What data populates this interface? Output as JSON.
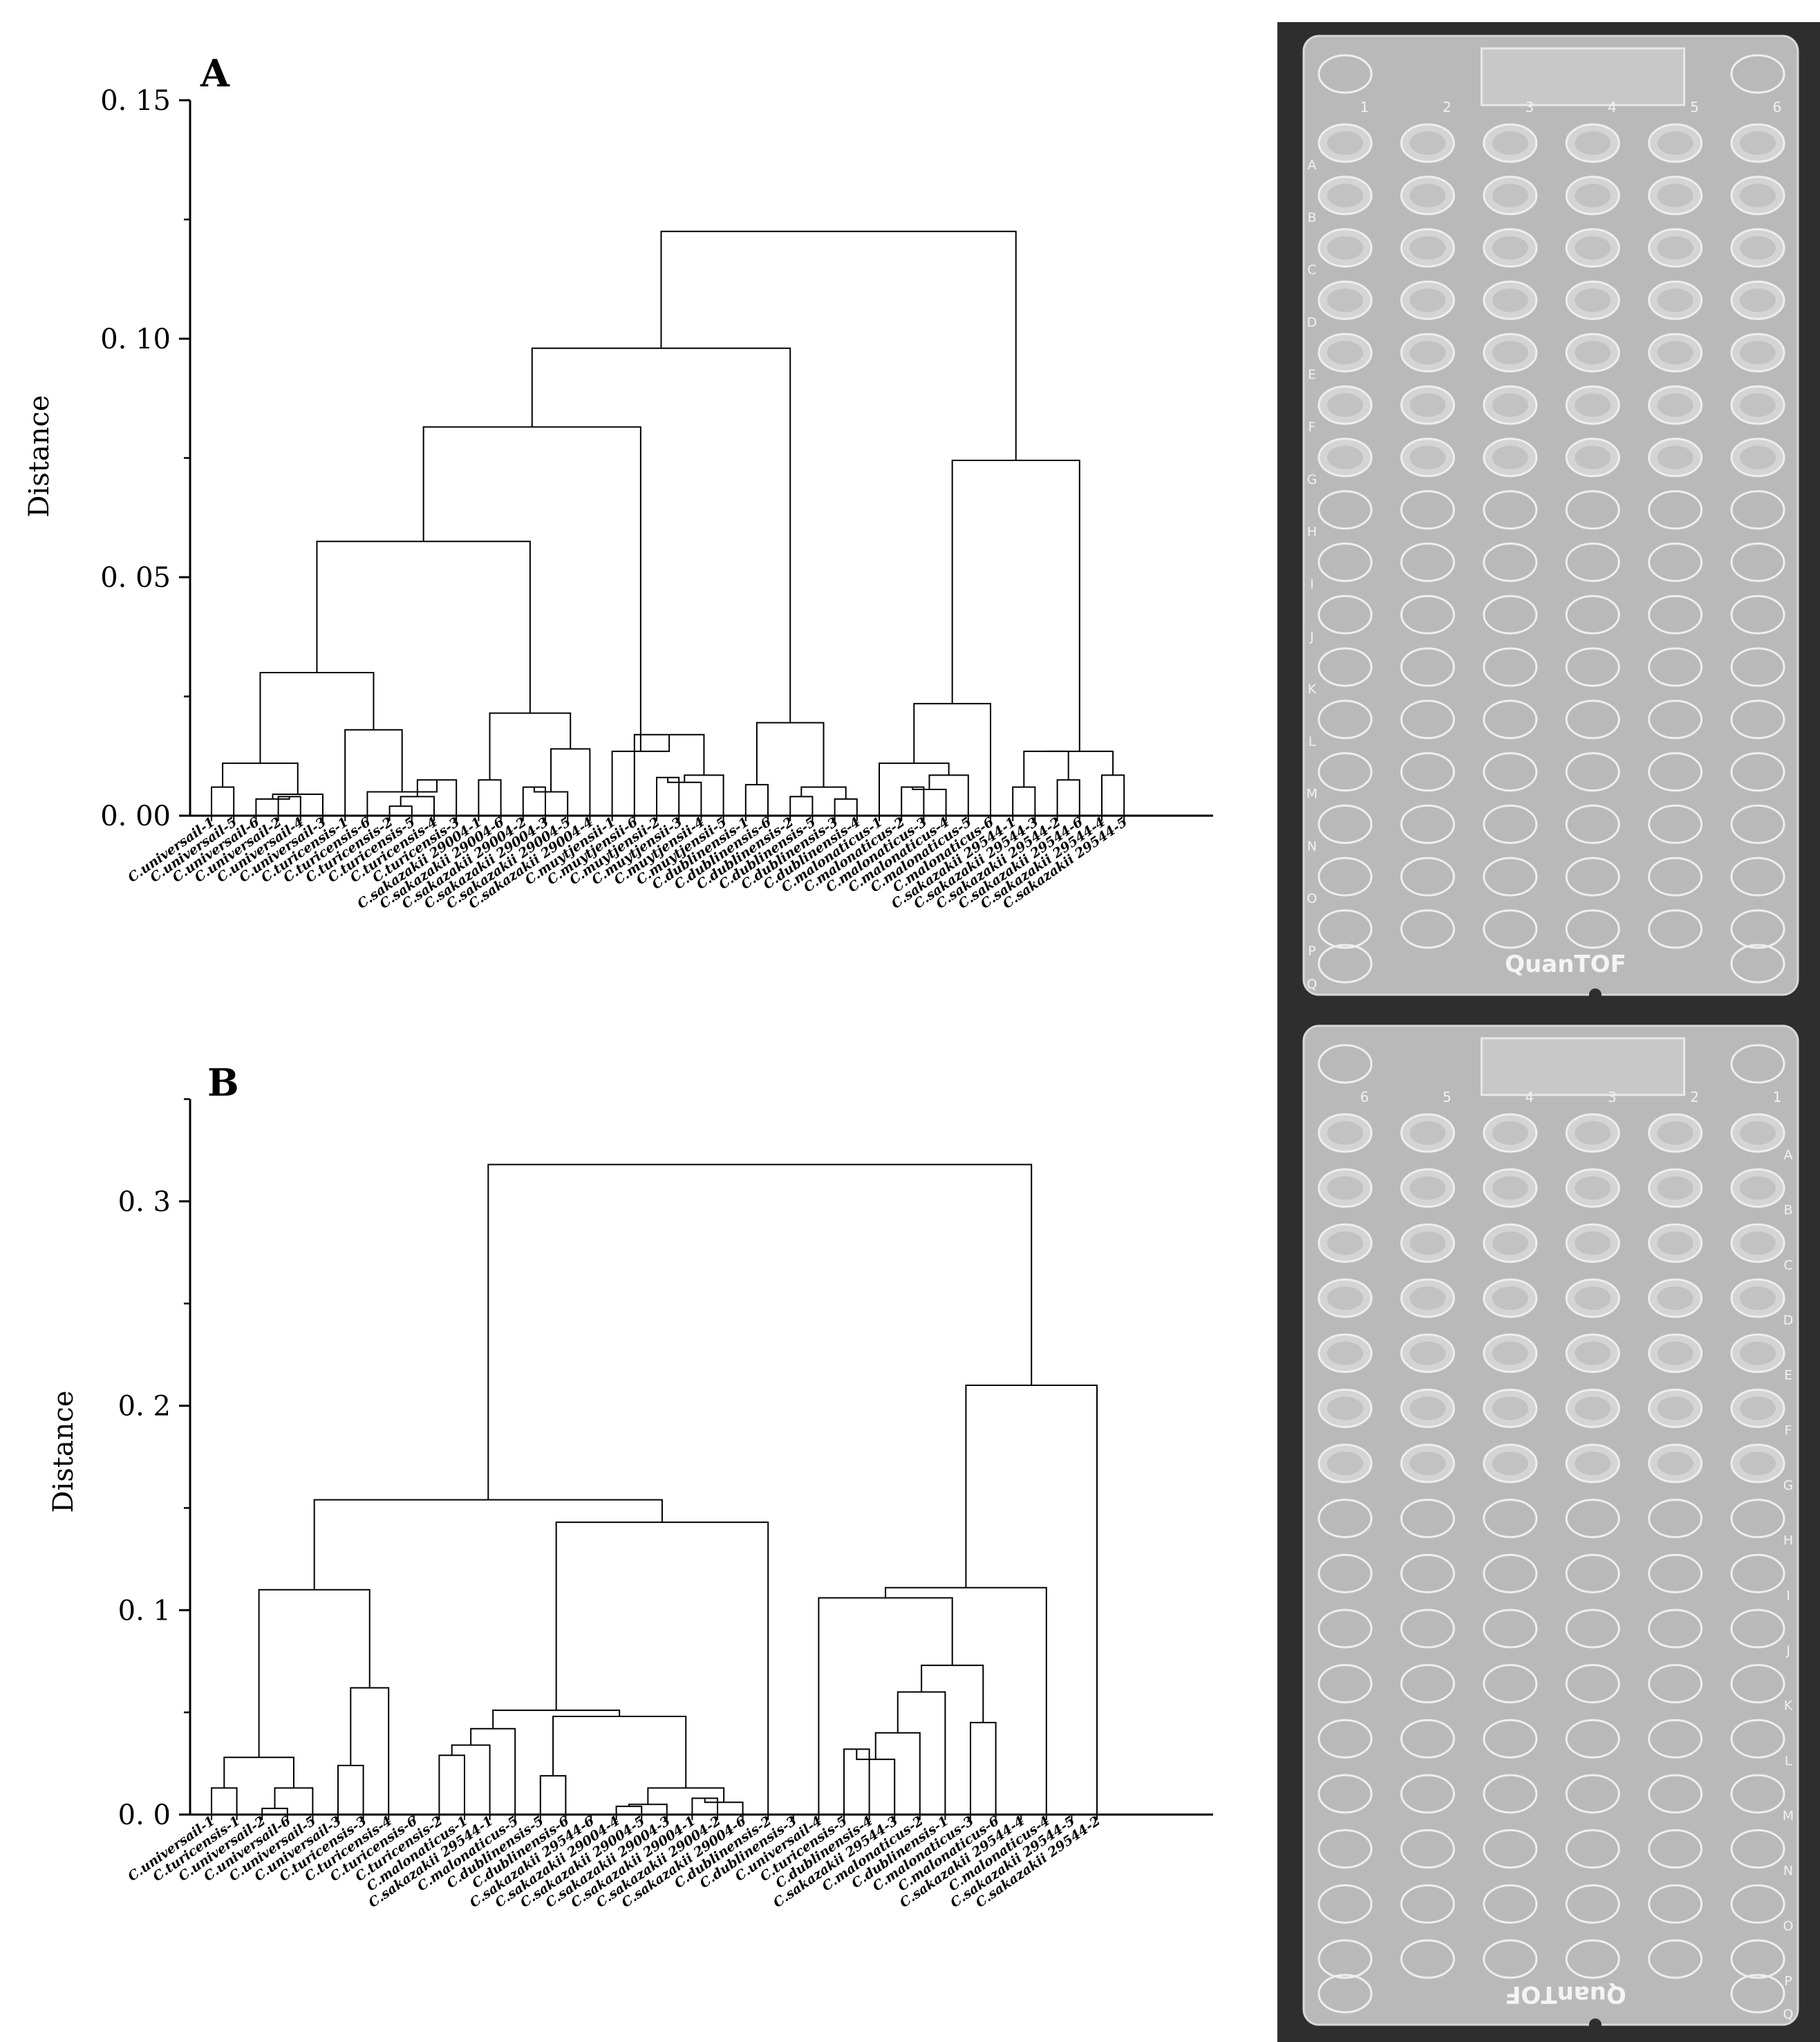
{
  "chart_data": [
    {
      "type": "dendrogram",
      "panel_label": "A",
      "ylabel": "Distance",
      "ylim": [
        0,
        0.15
      ],
      "yticks": [
        "0. 00",
        "0. 05",
        "0. 10",
        "0. 15"
      ],
      "ytick_values": [
        0,
        0.05,
        0.1,
        0.15
      ],
      "leaves": [
        "C.universail-1",
        "C.universail-5",
        "C.universail-6",
        "C.universail-2",
        "C.universail-4",
        "C.universail-3",
        "C.turicensis-1",
        "C.turicensis-6",
        "C.turicensis-2",
        "C.turicensis-5",
        "C.turicensis-4",
        "C.turicensis-3",
        "C.sakazakii 29004-1",
        "C.sakazakii 29004-6",
        "C.sakazakii 29004-2",
        "C.sakazakii 29004-3",
        "C.sakazakii 29004-5",
        "C.sakazakii 29004-4",
        "C.muytjensii-1",
        "C.muytjensii-6",
        "C.muytjensii-2",
        "C.muytjensii-3",
        "C.muytjensii-4",
        "C.muytjensii-5",
        "C.dublinensis-1",
        "C.dublinensis-6",
        "C.dublinensis-2",
        "C.dublinensis-5",
        "C.dublinensis-3",
        "C.dublinensis-4",
        "C.malonaticus-1",
        "C.malonaticus-2",
        "C.malonaticus-3",
        "C.malonaticus-4",
        "C.malonaticus-5",
        "C.malonaticus-6",
        "C.sakazakii 29544-1",
        "C.sakazakii 29544-3",
        "C.sakazakii 29544-2",
        "C.sakazakii 29544-6",
        "C.sakazakii 29544-4",
        "C.sakazakii 29544-5"
      ],
      "merges": [
        {
          "a": 0,
          "b": 1,
          "h": 0.006,
          "id": "u15"
        },
        {
          "a": 3,
          "b": 4,
          "h": 0.004,
          "id": "u24"
        },
        {
          "a": 2,
          "b": "u24",
          "h": 0.0035,
          "id": "u624"
        },
        {
          "a": "u624",
          "b": 5,
          "h": 0.0045,
          "id": "u6243"
        },
        {
          "a": "u15",
          "b": "u6243",
          "h": 0.011,
          "id": "uA"
        },
        {
          "a": 8,
          "b": 9,
          "h": 0.002,
          "id": "t25"
        },
        {
          "a": "t25",
          "b": 10,
          "h": 0.004,
          "id": "t254"
        },
        {
          "a": "t254",
          "b": 11,
          "h": 0.0075,
          "id": "t2543"
        },
        {
          "a": 7,
          "b": "t2543",
          "h": 0.005,
          "id": "t6r"
        },
        {
          "a": 6,
          "b": "t6r",
          "h": 0.018,
          "id": "tA"
        },
        {
          "a": "uA",
          "b": "tA",
          "h": 0.03,
          "id": "UT"
        },
        {
          "a": 14,
          "b": 15,
          "h": 0.006,
          "id": "s23"
        },
        {
          "a": "s23",
          "b": 16,
          "h": 0.005,
          "id": "s235"
        },
        {
          "a": "s235",
          "b": 17,
          "h": 0.014,
          "id": "s2354"
        },
        {
          "a": 12,
          "b": 13,
          "h": 0.0075,
          "id": "s16"
        },
        {
          "a": "s16",
          "b": "s2354",
          "h": 0.0215,
          "id": "sA"
        },
        {
          "a": "UT",
          "b": "sA",
          "h": 0.0575,
          "id": "UTS"
        },
        {
          "a": 20,
          "b": 21,
          "h": 0.008,
          "id": "m23"
        },
        {
          "a": "m23",
          "b": 22,
          "h": 0.007,
          "id": "m234"
        },
        {
          "a": "m234",
          "b": 23,
          "h": 0.0085,
          "id": "m2345"
        },
        {
          "a": 19,
          "b": "m2345",
          "h": 0.017,
          "id": "m6r"
        },
        {
          "a": 18,
          "b": "m6r",
          "h": 0.0135,
          "id": "mA"
        },
        {
          "a": "UTS",
          "b": "mA",
          "h": 0.0815,
          "id": "UTSM"
        },
        {
          "a": 26,
          "b": 27,
          "h": 0.004,
          "id": "d25"
        },
        {
          "a": 28,
          "b": 29,
          "h": 0.0035,
          "id": "d34"
        },
        {
          "a": "d25",
          "b": "d34",
          "h": 0.006,
          "id": "d2534"
        },
        {
          "a": 24,
          "b": 25,
          "h": 0.0065,
          "id": "d16"
        },
        {
          "a": "d16",
          "b": "d2534",
          "h": 0.0195,
          "id": "dA"
        },
        {
          "a": "UTSM",
          "b": "dA",
          "h": 0.098,
          "id": "LEFT"
        },
        {
          "a": 31,
          "b": 32,
          "h": 0.006,
          "id": "ma23"
        },
        {
          "a": "ma23",
          "b": 33,
          "h": 0.0055,
          "id": "ma234"
        },
        {
          "a": "ma234",
          "b": 34,
          "h": 0.0085,
          "id": "ma2345"
        },
        {
          "a": 30,
          "b": "ma2345",
          "h": 0.011,
          "id": "ma1r"
        },
        {
          "a": "ma1r",
          "b": 35,
          "h": 0.0235,
          "id": "maA"
        },
        {
          "a": 36,
          "b": 37,
          "h": 0.006,
          "id": "z13"
        },
        {
          "a": 38,
          "b": 39,
          "h": 0.0075,
          "id": "z26"
        },
        {
          "a": 40,
          "b": 41,
          "h": 0.0085,
          "id": "z45"
        },
        {
          "a": "z13",
          "b": "z26",
          "h": 0.0135,
          "id": "z1326"
        },
        {
          "a": "z1326",
          "b": "z45",
          "h": 0.0135,
          "id": "zA"
        },
        {
          "a": "maA",
          "b": "zA",
          "h": 0.0745,
          "id": "RIGHT"
        },
        {
          "a": "LEFT",
          "b": "RIGHT",
          "h": 0.1225,
          "id": "ROOT"
        }
      ]
    },
    {
      "type": "dendrogram",
      "panel_label": "B",
      "ylabel": "Distance",
      "ylim": [
        0,
        0.35
      ],
      "yticks": [
        "0. 0",
        "0. 1",
        "0. 2",
        "0. 3"
      ],
      "ytick_values": [
        0,
        0.1,
        0.2,
        0.3
      ],
      "leaves": [
        "C.universail-1",
        "C.turicensis-1",
        "C.universail-2",
        "C.universail-6",
        "C.universail-5",
        "C.universail-3",
        "C.turicensis-3",
        "C.turicensis-4",
        "C.turicensis-6",
        "C.turicensis-2",
        "C.malonaticus-1",
        "C.sakazakii 29544-1",
        "C.malonaticus-5",
        "C.dublinensis-5",
        "C.dublinensis-6",
        "C.sakazakii 29544-6",
        "C.sakazakii 29004-4",
        "C.sakazakii 29004-5",
        "C.sakazakii 29004-3",
        "C.sakazakii 29004-1",
        "C.sakazakii 29004-2",
        "C.sakazakii 29004-6",
        "C.dublinensis-2",
        "C.dublinensis-3",
        "C.universail-4",
        "C.turicensis-5",
        "C.dublinensis-4",
        "C.sakazakii 29544-3",
        "C.malonaticus-2",
        "C.dublinensis-1",
        "C.malonaticus-3",
        "C.malonaticus-6",
        "C.sakazakii 29544-4",
        "C.malonaticus-4",
        "C.sakazakii 29544-5",
        "C.sakazakii 29544-2"
      ],
      "merges": [
        {
          "a": 0,
          "b": 1,
          "h": 0.013,
          "id": "b01"
        },
        {
          "a": 2,
          "b": 3,
          "h": 0.003,
          "id": "b23"
        },
        {
          "a": "b23",
          "b": 4,
          "h": 0.013,
          "id": "b234"
        },
        {
          "a": "b01",
          "b": "b234",
          "h": 0.028,
          "id": "bL"
        },
        {
          "a": 5,
          "b": 6,
          "h": 0.024,
          "id": "b56"
        },
        {
          "a": "b56",
          "b": 7,
          "h": 0.062,
          "id": "b567"
        },
        {
          "a": "bL",
          "b": "b567",
          "h": 0.11,
          "id": "BL"
        },
        {
          "a": 9,
          "b": 10,
          "h": 0.029,
          "id": "b910"
        },
        {
          "a": "b910",
          "b": 11,
          "h": 0.034,
          "id": "b91011"
        },
        {
          "a": "b91011",
          "b": 12,
          "h": 0.042,
          "id": "bM"
        },
        {
          "a": 16,
          "b": 17,
          "h": 0.004,
          "id": "b1617"
        },
        {
          "a": "b1617",
          "b": 18,
          "h": 0.005,
          "id": "b161718"
        },
        {
          "a": 19,
          "b": 20,
          "h": 0.008,
          "id": "b1920"
        },
        {
          "a": "b1920",
          "b": 21,
          "h": 0.006,
          "id": "b192021"
        },
        {
          "a": "b161718",
          "b": "b192021",
          "h": 0.013,
          "id": "bS"
        },
        {
          "a": 13,
          "b": 14,
          "h": 0.019,
          "id": "b1314"
        },
        {
          "a": "b1314",
          "b": "bS",
          "h": 0.048,
          "id": "bD"
        },
        {
          "a": "bM",
          "b": "bD",
          "h": 0.051,
          "id": "bMD"
        },
        {
          "a": "bMD",
          "b": 22,
          "h": 0.143,
          "id": "bMD2"
        },
        {
          "a": "BL",
          "b": "bMD2",
          "h": 0.154,
          "id": "LEFT"
        },
        {
          "a": 25,
          "b": 26,
          "h": 0.032,
          "id": "b2526"
        },
        {
          "a": "b2526",
          "b": 27,
          "h": 0.027,
          "id": "b252627"
        },
        {
          "a": "b252627",
          "b": 28,
          "h": 0.04,
          "id": "b2528"
        },
        {
          "a": "b2528",
          "b": 29,
          "h": 0.06,
          "id": "b2529"
        },
        {
          "a": 30,
          "b": 31,
          "h": 0.045,
          "id": "b3031"
        },
        {
          "a": "b2529",
          "b": "b3031",
          "h": 0.073,
          "id": "b2531"
        },
        {
          "a": 24,
          "b": "b2531",
          "h": 0.106,
          "id": "b2431"
        },
        {
          "a": "b2431",
          "b": 33,
          "h": 0.111,
          "id": "b2433"
        },
        {
          "a": "b2433",
          "b": 35,
          "h": 0.21,
          "id": "RIGHT"
        },
        {
          "a": "LEFT",
          "b": "RIGHT",
          "h": 0.318,
          "id": "ROOT"
        }
      ]
    }
  ],
  "plates": [
    {
      "name": "plate-top",
      "brand": "QuanTOF",
      "column_labels": [
        "1",
        "2",
        "3",
        "4",
        "5",
        "6"
      ],
      "row_labels": [
        "A",
        "B",
        "C",
        "D",
        "E",
        "F",
        "G",
        "H",
        "I",
        "J",
        "K",
        "L",
        "M",
        "N",
        "O",
        "P",
        "Q"
      ],
      "spotted_rows": 7
    },
    {
      "name": "plate-bottom",
      "brand": "QuanTOF",
      "column_labels": [
        "6",
        "5",
        "4",
        "3",
        "2",
        "1"
      ],
      "row_labels": [
        "A",
        "B",
        "C",
        "D",
        "E",
        "F",
        "G",
        "H",
        "I",
        "J",
        "K",
        "L",
        "M",
        "N",
        "O",
        "P",
        "Q"
      ],
      "spotted_rows": 7
    }
  ]
}
